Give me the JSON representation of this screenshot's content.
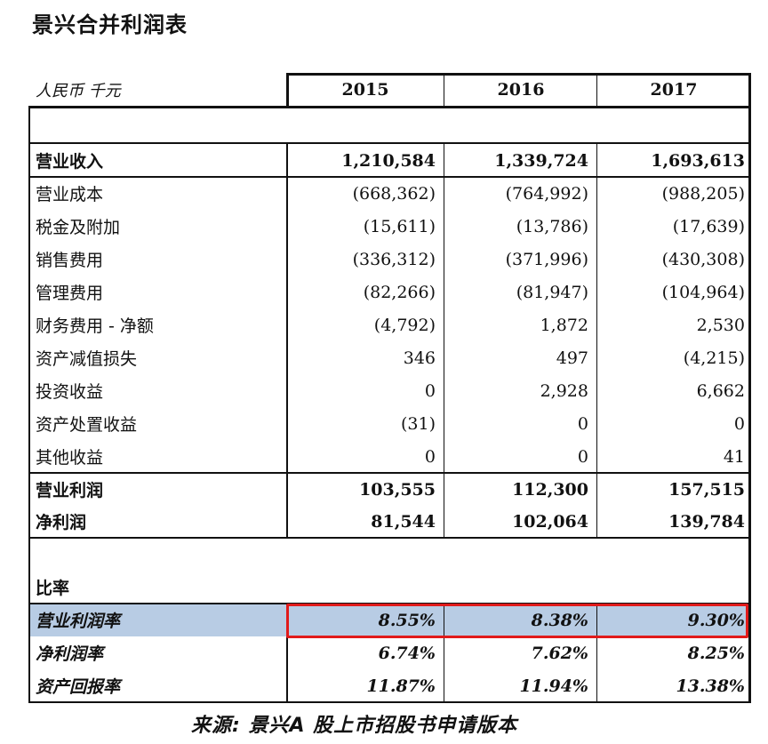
{
  "title": "景兴合并利润表",
  "currency_label": "人民币 千元",
  "years": [
    "2015",
    "2016",
    "2017"
  ],
  "rows": [
    {
      "label": "营业收入",
      "values": [
        "1,210,584",
        "1,339,724",
        "1,693,613"
      ]
    },
    {
      "label": "营业成本",
      "values": [
        "(668,362)",
        "(764,992)",
        "(988,205)"
      ]
    },
    {
      "label": "税金及附加",
      "values": [
        "(15,611)",
        "(13,786)",
        "(17,639)"
      ]
    },
    {
      "label": "销售费用",
      "values": [
        "(336,312)",
        "(371,996)",
        "(430,308)"
      ]
    },
    {
      "label": "管理费用",
      "values": [
        "(82,266)",
        "(81,947)",
        "(104,964)"
      ]
    },
    {
      "label": "财务费用 - 净额",
      "values": [
        "(4,792)",
        "1,872",
        "2,530"
      ]
    },
    {
      "label": "资产减值损失",
      "values": [
        "346",
        "497",
        "(4,215)"
      ]
    },
    {
      "label": "投资收益",
      "values": [
        "0",
        "2,928",
        "6,662"
      ]
    },
    {
      "label": "资产处置收益",
      "values": [
        "(31)",
        "0",
        "0"
      ]
    },
    {
      "label": "其他收益",
      "values": [
        "0",
        "0",
        "41"
      ]
    },
    {
      "label": "营业利润",
      "values": [
        "103,555",
        "112,300",
        "157,515"
      ]
    },
    {
      "label": "净利润",
      "values": [
        "81,544",
        "102,064",
        "139,784"
      ]
    }
  ],
  "ratio_section_label": "比率",
  "ratios": [
    {
      "label": "营业利润率",
      "values": [
        "8.55%",
        "8.38%",
        "9.30%"
      ]
    },
    {
      "label": "净利润率",
      "values": [
        "6.74%",
        "7.62%",
        "8.25%"
      ]
    },
    {
      "label": "资产回报率",
      "values": [
        "11.87%",
        "11.94%",
        "13.38%"
      ]
    }
  ],
  "source": "来源:   景兴A 股上市招股书申请版本",
  "colors": {
    "highlight_row": "#b8cce4",
    "annotation_box": "#e11a1a"
  }
}
